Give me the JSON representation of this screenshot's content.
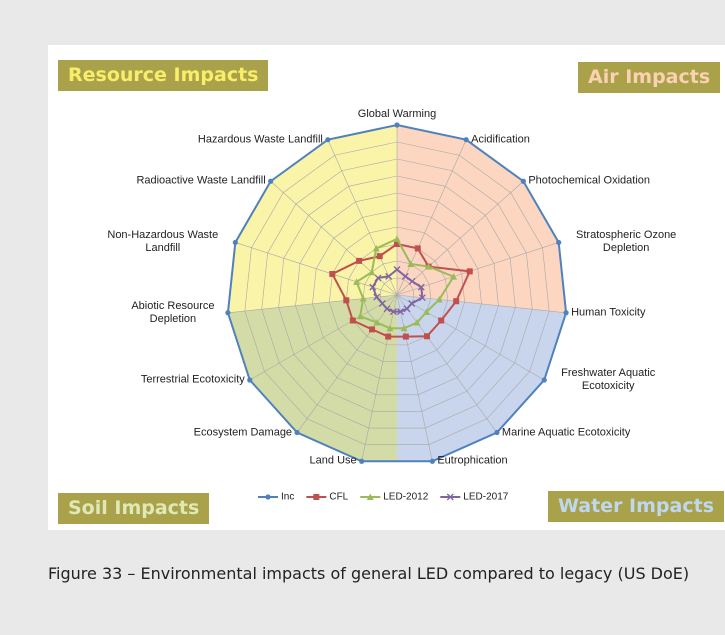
{
  "chart_data": {
    "type": "radar",
    "categories": [
      "Global Warming",
      "Acidification",
      "Photochemical Oxidation",
      "Stratospheric Ozone Depletion",
      "Human Toxicity",
      "Freshwater Aquatic Ecotoxicity",
      "Marine Aquatic Ecotoxicity",
      "Eutrophication",
      "Land Use",
      "Ecosystem Damage",
      "Terrestrial Ecotoxicity",
      "Abiotic Resource Depletion",
      "Non-Hazardous Waste Landfill",
      "Radioactive Waste Landfill",
      "Hazardous Waste Landfill"
    ],
    "series": [
      {
        "name": "Inc",
        "color": "#4f81bd",
        "marker": "circle",
        "values": [
          100,
          100,
          100,
          100,
          100,
          100,
          100,
          100,
          100,
          100,
          100,
          100,
          100,
          100,
          100
        ]
      },
      {
        "name": "CFL",
        "color": "#c0504d",
        "marker": "square",
        "values": [
          30,
          30,
          25,
          45,
          35,
          30,
          30,
          25,
          25,
          25,
          30,
          30,
          40,
          30,
          25
        ]
      },
      {
        "name": "LED-2012",
        "color": "#9bbb59",
        "marker": "triangle",
        "values": [
          33,
          20,
          25,
          35,
          25,
          20,
          20,
          20,
          20,
          20,
          25,
          20,
          25,
          20,
          30
        ]
      },
      {
        "name": "LED-2017",
        "color": "#8064a2",
        "marker": "cross",
        "values": [
          15,
          12,
          12,
          15,
          15,
          10,
          10,
          10,
          10,
          10,
          10,
          12,
          15,
          15,
          12
        ]
      }
    ],
    "rlim": [
      0,
      100
    ],
    "rticks": [
      10,
      20,
      30,
      40,
      50,
      60,
      70,
      80,
      90,
      100
    ],
    "grid": true,
    "legend": "bottom",
    "annotations": [
      "Resource Impacts",
      "Air Impacts",
      "Soil Impacts",
      "Water Impacts"
    ]
  },
  "caption": "Figure 33 – Environmental impacts of general LED compared to legacy (US DoE)"
}
